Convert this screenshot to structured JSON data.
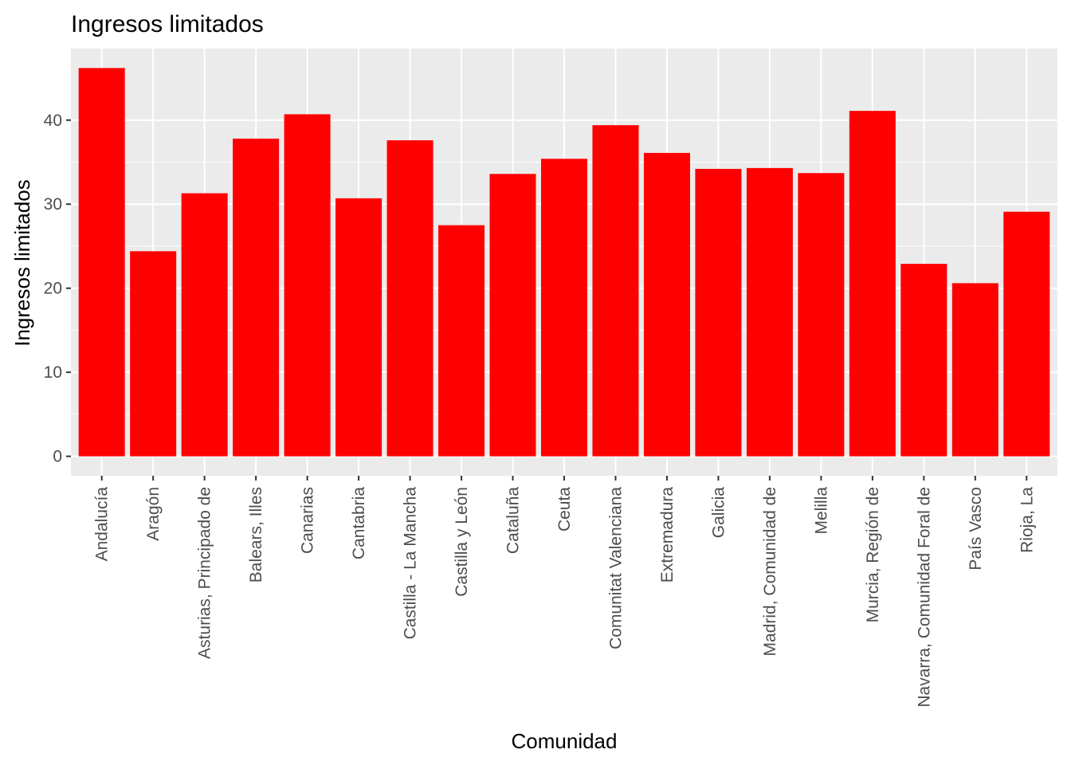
{
  "chart_data": {
    "type": "bar",
    "title": "Ingresos limitados",
    "xlabel": "Comunidad",
    "ylabel": "Ingresos limitados",
    "categories": [
      "Andalucía",
      "Aragón",
      "Asturias, Principado de",
      "Balears, Illes",
      "Canarias",
      "Cantabria",
      "Castilla - La Mancha",
      "Castilla y León",
      "Cataluña",
      "Ceuta",
      "Comunitat Valenciana",
      "Extremadura",
      "Galicia",
      "Madrid, Comunidad de",
      "Melilla",
      "Murcia, Región de",
      "Navarra, Comunidad Foral de",
      "País Vasco",
      "Rioja, La"
    ],
    "values": [
      46.2,
      24.4,
      31.3,
      37.8,
      40.7,
      30.7,
      37.6,
      27.5,
      33.6,
      35.4,
      39.4,
      36.1,
      34.2,
      34.3,
      33.7,
      41.1,
      22.9,
      20.6,
      29.1
    ],
    "yticks": [
      0,
      10,
      20,
      30,
      40
    ],
    "ylim": [
      -2.31,
      48.51
    ],
    "bar_color": "#FF0000",
    "panel_color": "#EBEBEB",
    "grid_color": "#FFFFFF",
    "grid": true,
    "legend": "none"
  }
}
